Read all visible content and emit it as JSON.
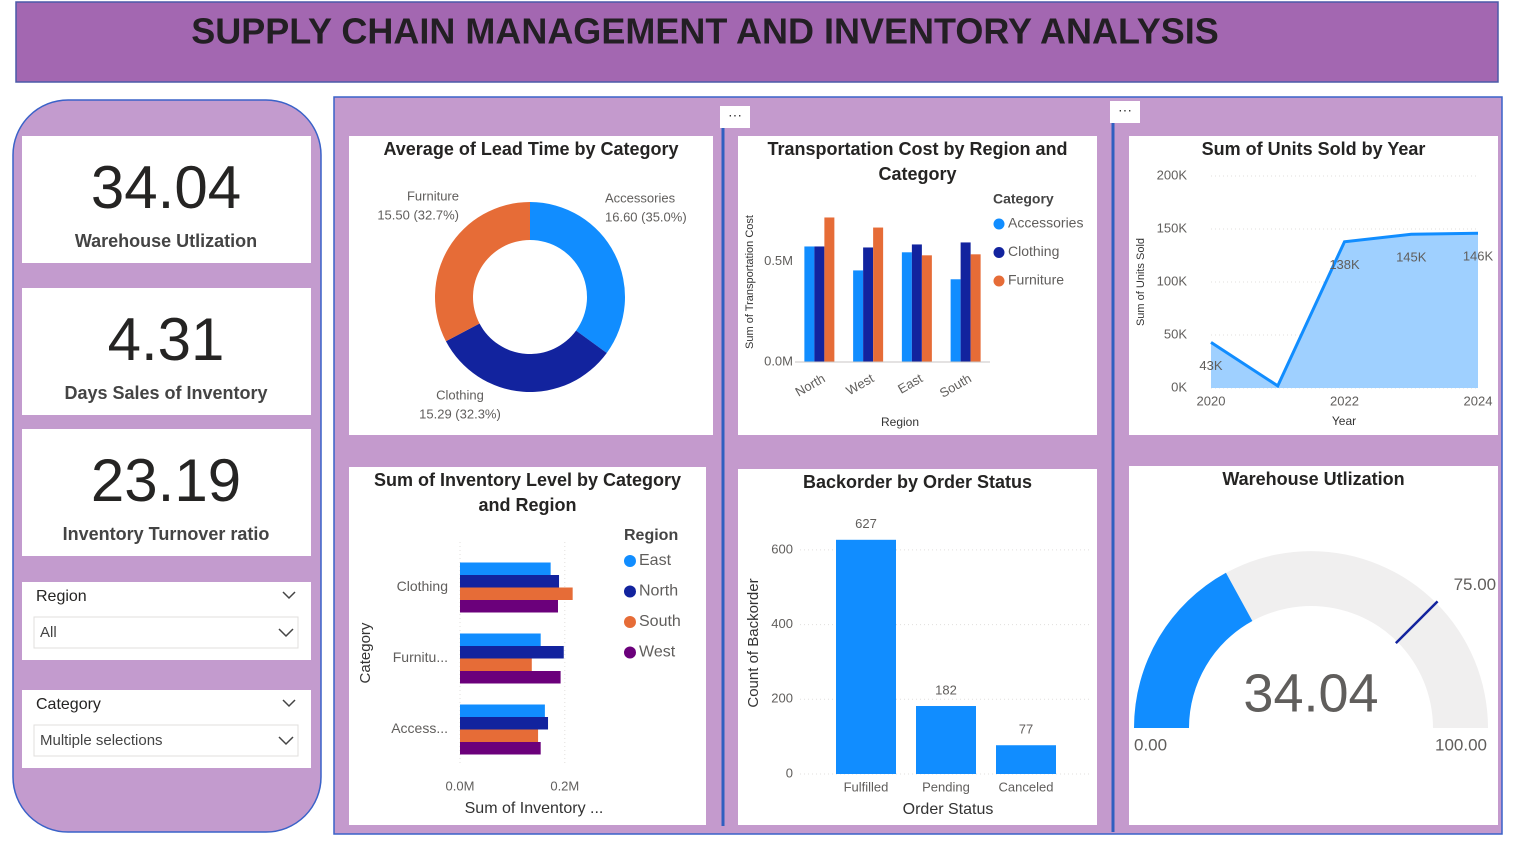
{
  "header": {
    "title": "SUPPLY CHAIN MANAGEMENT AND INVENTORY ANALYSIS"
  },
  "kpis": [
    {
      "value": 34.04,
      "label": "Warehouse Utlization"
    },
    {
      "value": 4.31,
      "label": "Days Sales of Inventory"
    },
    {
      "value": 23.19,
      "label": "Inventory Turnover ratio"
    }
  ],
  "slicers": [
    {
      "label": "Region",
      "value": "All"
    },
    {
      "label": "Category",
      "value": "Multiple selections"
    }
  ],
  "chart_data": [
    {
      "type": "pie",
      "title": "Average of Lead Time by Category",
      "categories": [
        "Accessories",
        "Clothing",
        "Furniture"
      ],
      "values": [
        16.6,
        15.29,
        15.5
      ],
      "value_labels": [
        "16.60 (35.0%)",
        "15.29 (32.3%)",
        "15.50 (32.7%)"
      ],
      "colors": [
        "#118DFF",
        "#12239E",
        "#E66C37"
      ]
    },
    {
      "type": "bar",
      "title": "Transportation Cost by Region and Category",
      "x_label": "Region",
      "y_label": "Sum of Transportation Cost",
      "legend_title": "Category",
      "categories": [
        "North",
        "West",
        "East",
        "South"
      ],
      "series": [
        {
          "name": "Accessories",
          "color": "#118DFF",
          "values": [
            574000,
            455000,
            545000,
            411000
          ]
        },
        {
          "name": "Clothing",
          "color": "#12239E",
          "values": [
            574000,
            569000,
            584000,
            594000
          ]
        },
        {
          "name": "Furniture",
          "color": "#E66C37",
          "values": [
            718000,
            668000,
            530000,
            535000
          ]
        }
      ],
      "ylim": [
        0,
        780000
      ],
      "yticks": [
        {
          "value": 0,
          "label": "0.0M"
        },
        {
          "value": 500000,
          "label": "0.5M"
        }
      ]
    },
    {
      "type": "area",
      "title": "Sum of Units Sold by Year",
      "x_label": "Year",
      "y_label": "Sum of Units Sold",
      "x": [
        2020,
        2021,
        2022,
        2023,
        2024
      ],
      "values": [
        43000,
        2000,
        138000,
        145000,
        146000
      ],
      "value_labels": [
        "43K",
        null,
        "138K",
        "145K",
        "146K"
      ],
      "color": "#118DFF",
      "fill": "#9FD0FF",
      "xlim": [
        2020,
        2024
      ],
      "xticks": [
        2020,
        2022,
        2024
      ],
      "ylim": [
        0,
        200000
      ],
      "yticks": [
        {
          "value": 0,
          "label": "0K"
        },
        {
          "value": 50000,
          "label": "50K"
        },
        {
          "value": 100000,
          "label": "100K"
        },
        {
          "value": 150000,
          "label": "150K"
        },
        {
          "value": 200000,
          "label": "200K"
        }
      ],
      "grid": true
    },
    {
      "type": "hbar",
      "title": "Sum of Inventory Level by Category and Region",
      "x_label": "Sum of Inventory ...",
      "y_label": "Category",
      "legend_title": "Region",
      "categories": [
        "Clothing",
        "Furnitu...",
        "Access..."
      ],
      "series": [
        {
          "name": "East",
          "color": "#118DFF",
          "values": [
            173000,
            154000,
            162000
          ]
        },
        {
          "name": "North",
          "color": "#12239E",
          "values": [
            189000,
            198000,
            168000
          ]
        },
        {
          "name": "South",
          "color": "#E66C37",
          "values": [
            215000,
            137000,
            149000
          ]
        },
        {
          "name": "West",
          "color": "#6B007B",
          "values": [
            187000,
            192000,
            154000
          ]
        }
      ],
      "xlim": [
        0,
        250000
      ],
      "xticks": [
        {
          "value": 0,
          "label": "0.0M"
        },
        {
          "value": 200000,
          "label": "0.2M"
        }
      ],
      "grid": true
    },
    {
      "type": "column",
      "title": "Backorder by Order Status",
      "x_label": "Order Status",
      "y_label": "Count of Backorder",
      "categories": [
        "Fulfilled",
        "Pending",
        "Canceled"
      ],
      "values": [
        627,
        182,
        77
      ],
      "color": "#118DFF",
      "ylim": [
        0,
        680
      ],
      "yticks": [
        0,
        200,
        400,
        600
      ],
      "grid": true
    },
    {
      "type": "gauge",
      "title": "Warehouse Utlization",
      "value": 34.04,
      "color": "#118DFF",
      "min": {
        "value": 0,
        "label": "0.00"
      },
      "max": {
        "value": 100,
        "label": "100.00"
      },
      "target": {
        "value": 75,
        "label": "75.00"
      }
    }
  ]
}
